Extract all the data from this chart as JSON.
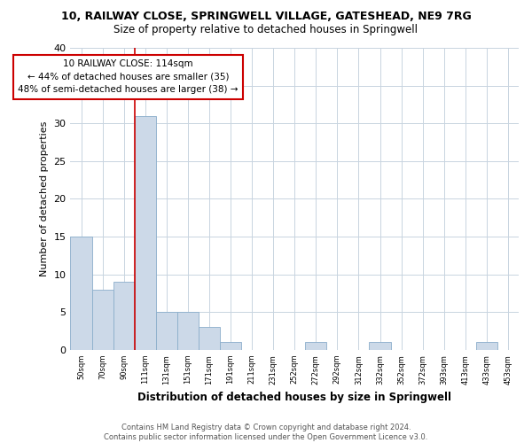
{
  "title_line1": "10, RAILWAY CLOSE, SPRINGWELL VILLAGE, GATESHEAD, NE9 7RG",
  "title_line2": "Size of property relative to detached houses in Springwell",
  "xlabel": "Distribution of detached houses by size in Springwell",
  "ylabel": "Number of detached properties",
  "annotation_line1": "10 RAILWAY CLOSE: 114sqm",
  "annotation_line2": "← 44% of detached houses are smaller (35)",
  "annotation_line3": "48% of semi-detached houses are larger (38) →",
  "bar_labels": [
    "50sqm",
    "70sqm",
    "90sqm",
    "111sqm",
    "131sqm",
    "151sqm",
    "171sqm",
    "191sqm",
    "211sqm",
    "231sqm",
    "252sqm",
    "272sqm",
    "292sqm",
    "312sqm",
    "332sqm",
    "352sqm",
    "372sqm",
    "393sqm",
    "413sqm",
    "433sqm",
    "453sqm"
  ],
  "bar_values": [
    15,
    8,
    9,
    31,
    5,
    5,
    3,
    1,
    0,
    0,
    0,
    1,
    0,
    0,
    1,
    0,
    0,
    0,
    0,
    1,
    0
  ],
  "bar_color": "#ccd9e8",
  "bar_edge_color": "#8baecb",
  "vline_color": "#cc0000",
  "vline_bar_index": 3,
  "ylim": [
    0,
    40
  ],
  "yticks": [
    0,
    5,
    10,
    15,
    20,
    25,
    30,
    35,
    40
  ],
  "annotation_box_color": "#cc0000",
  "background_color": "#ffffff",
  "grid_color": "#c8d4e0",
  "footer": "Contains HM Land Registry data © Crown copyright and database right 2024.\nContains public sector information licensed under the Open Government Licence v3.0."
}
